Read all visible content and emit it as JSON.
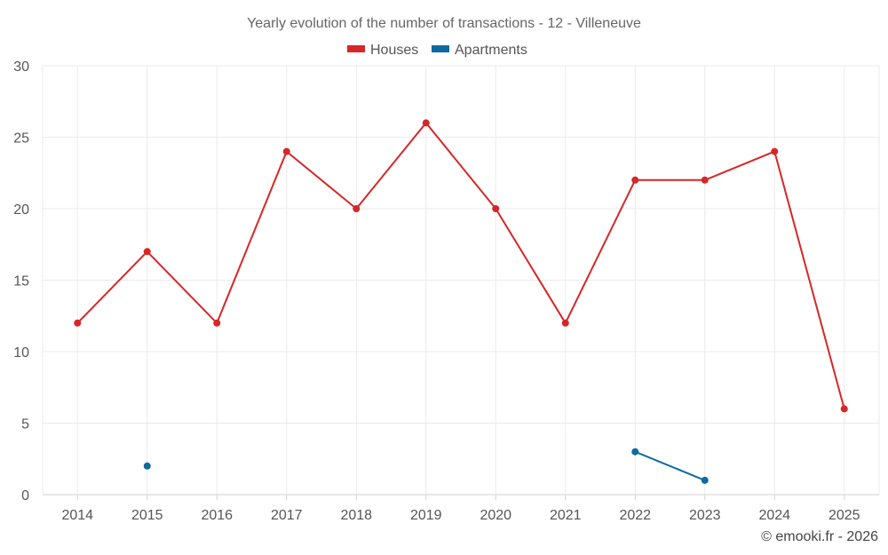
{
  "chart_data": {
    "type": "line",
    "title": "Yearly evolution of the number of transactions - 12 - Villeneuve",
    "categories": [
      "2014",
      "2015",
      "2016",
      "2017",
      "2018",
      "2019",
      "2020",
      "2021",
      "2022",
      "2023",
      "2024",
      "2025"
    ],
    "ylim": [
      0,
      30
    ],
    "yticks": [
      0,
      5,
      10,
      15,
      20,
      25,
      30
    ],
    "grid": true,
    "legend_position": "top-center",
    "series": [
      {
        "name": "Houses",
        "color": "#d62728",
        "values": [
          12,
          17,
          12,
          24,
          20,
          26,
          20,
          12,
          22,
          22,
          24,
          6
        ]
      },
      {
        "name": "Apartments",
        "color": "#0e6aa0",
        "values": [
          null,
          2,
          null,
          null,
          null,
          null,
          null,
          null,
          3,
          1,
          null,
          null
        ]
      }
    ],
    "xlabel": "",
    "ylabel": ""
  },
  "credit": "© emooki.fr - 2026"
}
